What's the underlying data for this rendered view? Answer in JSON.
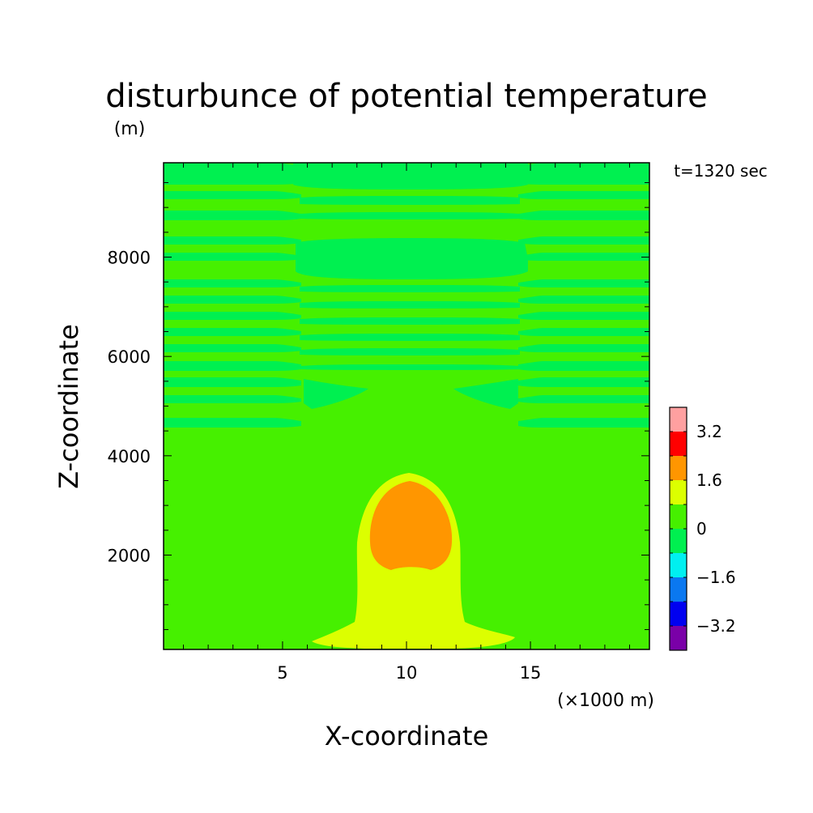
{
  "chart_data": {
    "type": "heatmap",
    "title": "disturbunce of potential temperature",
    "ylabel": "Z-coordinate",
    "yunit": "(m)",
    "xlabel": "X-coordinate",
    "xunit": "(×1000 m)",
    "time_label": "t=1320 sec",
    "xlim": [
      0.2,
      19.8
    ],
    "ylim": [
      100,
      9900
    ],
    "x_ticks": [
      5,
      10,
      15
    ],
    "y_ticks": [
      2000,
      4000,
      6000,
      8000
    ],
    "colorbar": {
      "levels": [
        -4.0,
        -3.2,
        -2.4,
        -1.6,
        -0.8,
        0,
        0.8,
        1.6,
        2.4,
        3.2,
        4.0
      ],
      "colors": [
        "#7a00a8",
        "#0000f0",
        "#0a78f0",
        "#00f0f0",
        "#00f050",
        "#46f000",
        "#dcff00",
        "#ff9600",
        "#ff0000",
        "#ffa0a0"
      ],
      "tick_labels": [
        "3.2",
        "1.6",
        "0",
        "−1.6",
        "−3.2"
      ]
    },
    "regions": [
      {
        "name": "background",
        "range": [
          0,
          0.8
        ]
      },
      {
        "name": "upper-wave-bands",
        "range": [
          -0.8,
          0
        ],
        "z_range": [
          4600,
          9900
        ]
      },
      {
        "name": "thermal-plume",
        "range": [
          0.8,
          1.6
        ],
        "x_range": [
          6,
          14.2
        ],
        "z_range": [
          100,
          3650
        ]
      },
      {
        "name": "thermal-core",
        "range": [
          1.6,
          2.4
        ],
        "x_range": [
          8.6,
          11.8
        ],
        "z_range": [
          1700,
          3500
        ]
      }
    ]
  }
}
